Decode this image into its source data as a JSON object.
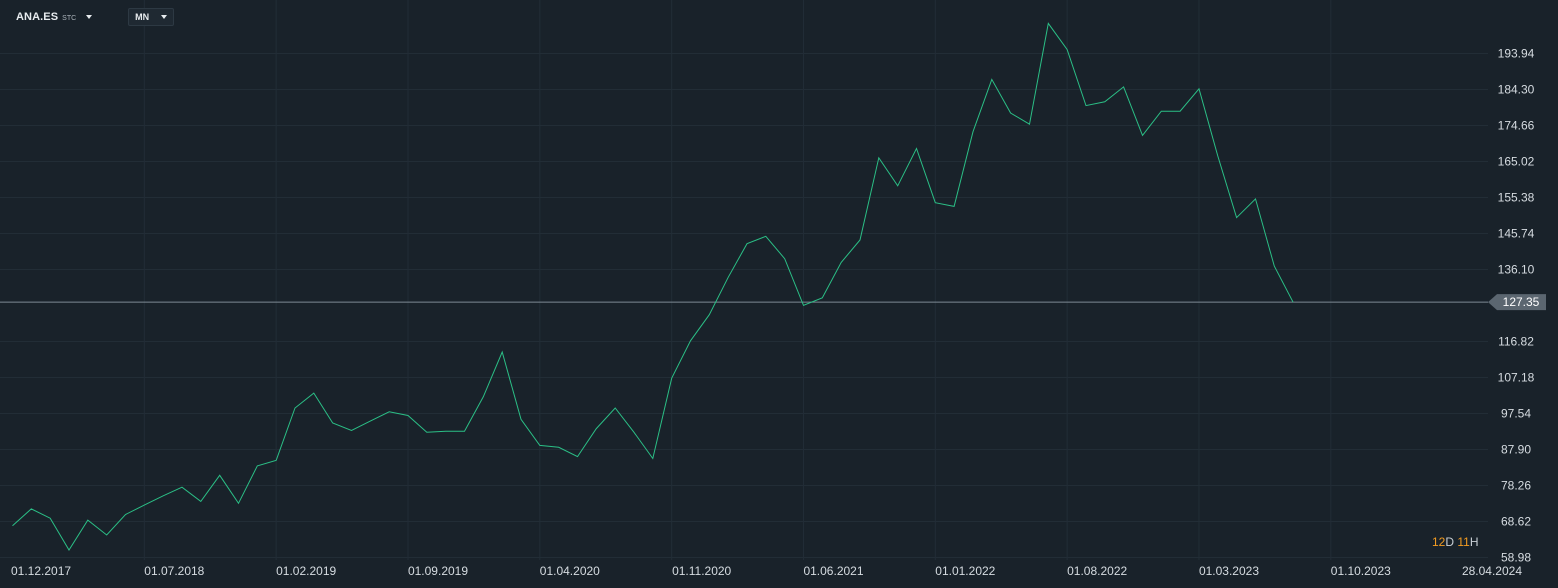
{
  "toolbar": {
    "symbol": "ANA.ES",
    "symbol_type": "STC",
    "interval": "MN"
  },
  "countdown": {
    "days": "12",
    "days_unit": "D",
    "hours": "11",
    "hours_unit": "H"
  },
  "colors": {
    "background": "#19222a",
    "grid": "#222d36",
    "line": "#2bbf86",
    "text": "#d6dce1",
    "price_line": "#7e8a94",
    "price_tag": "#5b6670",
    "countdown_accent": "#f39c22"
  },
  "chart_data": {
    "type": "line",
    "title": "",
    "xlabel": "",
    "ylabel": "",
    "grid": true,
    "y_axis_side": "right",
    "ylim": [
      58.98,
      203.58
    ],
    "y_ticks": [
      "193.94",
      "184.30",
      "174.66",
      "165.02",
      "155.38",
      "145.74",
      "136.10",
      "116.82",
      "107.18",
      "97.54",
      "87.90",
      "78.26",
      "68.62",
      "58.98"
    ],
    "x_ticks": [
      "01.12.2017",
      "01.07.2018",
      "01.02.2019",
      "01.09.2019",
      "01.04.2020",
      "01.11.2020",
      "01.06.2021",
      "01.01.2022",
      "01.08.2022",
      "01.03.2023",
      "01.10.2023",
      "28.04.2024"
    ],
    "x_tick_months": [
      "2017-12",
      "2018-07",
      "2019-02",
      "2019-09",
      "2020-04",
      "2020-11",
      "2021-06",
      "2022-01",
      "2022-08",
      "2023-03",
      "2023-10",
      "2024-04-28"
    ],
    "current_price": "127.35",
    "series": [
      {
        "name": "",
        "x": [
          "2017-12",
          "2018-01",
          "2018-02",
          "2018-03",
          "2018-04",
          "2018-05",
          "2018-06",
          "2018-07",
          "2018-08",
          "2018-09",
          "2018-10",
          "2018-11",
          "2018-12",
          "2019-01",
          "2019-02",
          "2019-03",
          "2019-04",
          "2019-05",
          "2019-06",
          "2019-07",
          "2019-08",
          "2019-09",
          "2019-10",
          "2019-11",
          "2019-12",
          "2020-01",
          "2020-02",
          "2020-03",
          "2020-04",
          "2020-05",
          "2020-06",
          "2020-07",
          "2020-08",
          "2020-09",
          "2020-10",
          "2020-11",
          "2020-12",
          "2021-01",
          "2021-02",
          "2021-03",
          "2021-04",
          "2021-05",
          "2021-06",
          "2021-07",
          "2021-08",
          "2021-09",
          "2021-10",
          "2021-11",
          "2021-12",
          "2022-01",
          "2022-02",
          "2022-03",
          "2022-04",
          "2022-05",
          "2022-06",
          "2022-07",
          "2022-08",
          "2022-09",
          "2022-10",
          "2022-11",
          "2022-12",
          "2023-01",
          "2023-02",
          "2023-03",
          "2023-04",
          "2023-05",
          "2023-06",
          "2023-07",
          "2023-08"
        ],
        "values": [
          67.5,
          72.0,
          69.5,
          61.0,
          69.0,
          65.0,
          70.5,
          73.0,
          75.5,
          77.8,
          74.0,
          81.0,
          73.5,
          83.5,
          85.0,
          99.0,
          103.0,
          95.0,
          93.0,
          95.5,
          98.0,
          97.0,
          92.5,
          92.8,
          92.8,
          102.0,
          114.0,
          96.0,
          89.0,
          88.5,
          86.0,
          93.5,
          99.0,
          92.5,
          85.5,
          107.0,
          117.0,
          124.0,
          134.0,
          143.0,
          145.0,
          139.0,
          126.5,
          128.5,
          138.0,
          144.0,
          166.0,
          158.5,
          168.5,
          154.0,
          153.0,
          173.0,
          187.0,
          178.0,
          175.0,
          202.0,
          195.0,
          180.0,
          181.0,
          185.0,
          172.0,
          178.5,
          178.5,
          184.5,
          166.5,
          150.0,
          155.0,
          137.0,
          127.35
        ]
      }
    ]
  }
}
